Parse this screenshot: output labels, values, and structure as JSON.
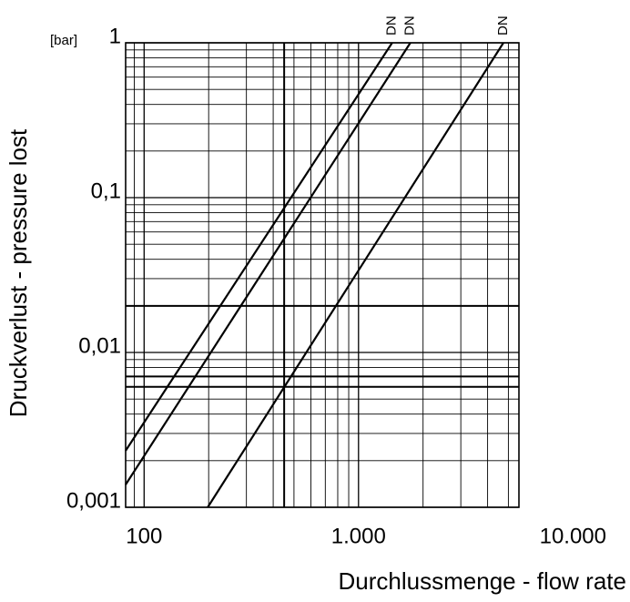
{
  "chart_data": {
    "type": "line",
    "x_label": "Durchlussmenge - flow rate",
    "y_label": "Druckverlust - pressure lost",
    "y_unit": "[bar]",
    "log_x": true,
    "log_y": true,
    "grid": true,
    "xlim": [
      82,
      5600
    ],
    "ylim": [
      0.001,
      1
    ],
    "xticks": [
      100,
      {
        "value": 1000,
        "label": "1.000"
      },
      {
        "value": 10000,
        "label": "10.000"
      }
    ],
    "yticks": [
      {
        "value": 0.001,
        "label": "0,001"
      },
      {
        "value": 0.01,
        "label": "0,01"
      },
      {
        "value": 0.1,
        "label": "0,1"
      },
      1
    ],
    "xminor": [
      90,
      200,
      300,
      400,
      500,
      600,
      700,
      800,
      900,
      2000,
      3000,
      4000,
      5000
    ],
    "yminor": [
      0.002,
      0.003,
      0.004,
      0.005,
      0.006,
      0.007,
      0.008,
      0.009,
      0.02,
      0.03,
      0.04,
      0.05,
      0.06,
      0.07,
      0.08,
      0.09,
      0.2,
      0.3,
      0.4,
      0.5,
      0.6,
      0.7,
      0.8,
      0.9
    ],
    "x_reference_lines": [
      450
    ],
    "y_reference_lines": [
      0.02,
      0.007,
      0.006
    ],
    "series": [
      {
        "name": "DN",
        "color": "#000000",
        "x": [
          82,
          1435
        ],
        "values": [
          0.00232,
          1
        ]
      },
      {
        "name": "DN",
        "color": "#000000",
        "x": [
          82,
          1745
        ],
        "values": [
          0.0014,
          1
        ]
      },
      {
        "name": "DN",
        "color": "#000000",
        "x": [
          198,
          4740
        ],
        "values": [
          0.001,
          1
        ]
      }
    ]
  }
}
